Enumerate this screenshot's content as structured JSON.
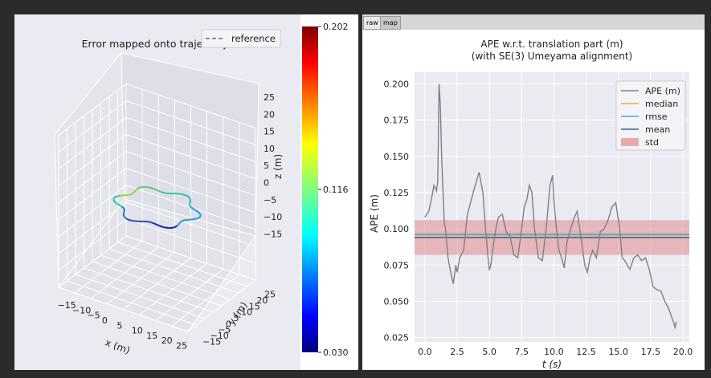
{
  "tabs": [
    "raw",
    "map"
  ],
  "left_chart": {
    "title": "Error mapped onto trajectory",
    "legend_label": "reference",
    "x_label": "x (m)",
    "y_label": "y (m)",
    "z_label": "z (m)",
    "x_ticks": [
      "−15",
      "−10",
      "−5",
      "0",
      "5",
      "10",
      "15",
      "20",
      "25"
    ],
    "y_ticks": [
      "−15",
      "−10",
      "−5",
      "0",
      "5",
      "10",
      "15",
      "20",
      "25"
    ],
    "z_ticks": [
      "25",
      "20",
      "15",
      "10",
      "5",
      "0",
      "−5",
      "−10",
      "−15"
    ],
    "colorbar_ticks": [
      "0.202",
      "0.116",
      "0.030"
    ],
    "colorbar_range": [
      0.03,
      0.202
    ]
  },
  "chart_data": {
    "type": "line",
    "title": "APE w.r.t. translation part (m)",
    "subtitle": "(with SE(3) Umeyama alignment)",
    "xlabel": "t (s)",
    "ylabel": "APE (m)",
    "xlim": [
      -0.8,
      20.5
    ],
    "ylim": [
      0.022,
      0.208
    ],
    "x_ticks": [
      0.0,
      2.5,
      5.0,
      7.5,
      10.0,
      12.5,
      15.0,
      17.5,
      20.0
    ],
    "x_tick_labels": [
      "0.0",
      "2.5",
      "5.0",
      "7.5",
      "10.0",
      "12.5",
      "15.0",
      "17.5",
      "20.0"
    ],
    "y_ticks": [
      0.025,
      0.05,
      0.075,
      0.1,
      0.125,
      0.15,
      0.175,
      0.2
    ],
    "y_tick_labels": [
      "0.025",
      "0.050",
      "0.075",
      "0.100",
      "0.125",
      "0.150",
      "0.175",
      "0.200"
    ],
    "grid": true,
    "legend_position": "top-right",
    "series": [
      {
        "name": "APE (m)",
        "color": "#808080",
        "x": [
          0.0,
          0.3,
          0.5,
          0.7,
          0.9,
          1.0,
          1.1,
          1.2,
          1.3,
          1.5,
          1.6,
          1.8,
          2.0,
          2.2,
          2.4,
          2.5,
          2.7,
          3.0,
          3.3,
          3.6,
          3.9,
          4.2,
          4.5,
          4.7,
          4.9,
          5.0,
          5.1,
          5.3,
          5.5,
          5.7,
          6.0,
          6.3,
          6.6,
          6.9,
          7.2,
          7.5,
          7.7,
          7.9,
          8.1,
          8.3,
          8.5,
          8.8,
          9.1,
          9.4,
          9.7,
          9.9,
          10.0,
          10.2,
          10.4,
          10.6,
          10.8,
          11.0,
          11.3,
          11.6,
          11.8,
          12.0,
          12.2,
          12.4,
          12.6,
          12.8,
          13.0,
          13.3,
          13.6,
          13.9,
          14.2,
          14.5,
          14.8,
          15.1,
          15.3,
          15.5,
          15.7,
          15.9,
          16.2,
          16.5,
          16.8,
          17.1,
          17.4,
          17.7,
          18.0,
          18.3,
          18.6,
          18.9,
          19.1,
          19.3,
          19.4,
          19.5
        ],
        "values": [
          0.108,
          0.112,
          0.12,
          0.13,
          0.126,
          0.133,
          0.2,
          0.185,
          0.15,
          0.105,
          0.1,
          0.08,
          0.07,
          0.062,
          0.075,
          0.07,
          0.08,
          0.085,
          0.11,
          0.12,
          0.13,
          0.139,
          0.125,
          0.1,
          0.08,
          0.072,
          0.074,
          0.088,
          0.1,
          0.108,
          0.11,
          0.098,
          0.095,
          0.082,
          0.08,
          0.1,
          0.115,
          0.12,
          0.13,
          0.125,
          0.1,
          0.08,
          0.078,
          0.1,
          0.13,
          0.137,
          0.12,
          0.1,
          0.085,
          0.08,
          0.073,
          0.09,
          0.1,
          0.108,
          0.112,
          0.1,
          0.088,
          0.075,
          0.07,
          0.08,
          0.085,
          0.08,
          0.098,
          0.1,
          0.106,
          0.115,
          0.118,
          0.1,
          0.08,
          0.078,
          0.075,
          0.072,
          0.08,
          0.082,
          0.078,
          0.08,
          0.072,
          0.06,
          0.058,
          0.057,
          0.05,
          0.045,
          0.04,
          0.035,
          0.032,
          0.036
        ]
      },
      {
        "name": "median",
        "color": "#e2b24d",
        "constant": 0.0955
      },
      {
        "name": "rmse",
        "color": "#4fa8d4",
        "constant": 0.0962
      },
      {
        "name": "mean",
        "color": "#3c63a8",
        "constant": 0.094
      },
      {
        "name": "std",
        "color": "#e08a8f",
        "band": [
          0.082,
          0.106
        ]
      }
    ]
  }
}
